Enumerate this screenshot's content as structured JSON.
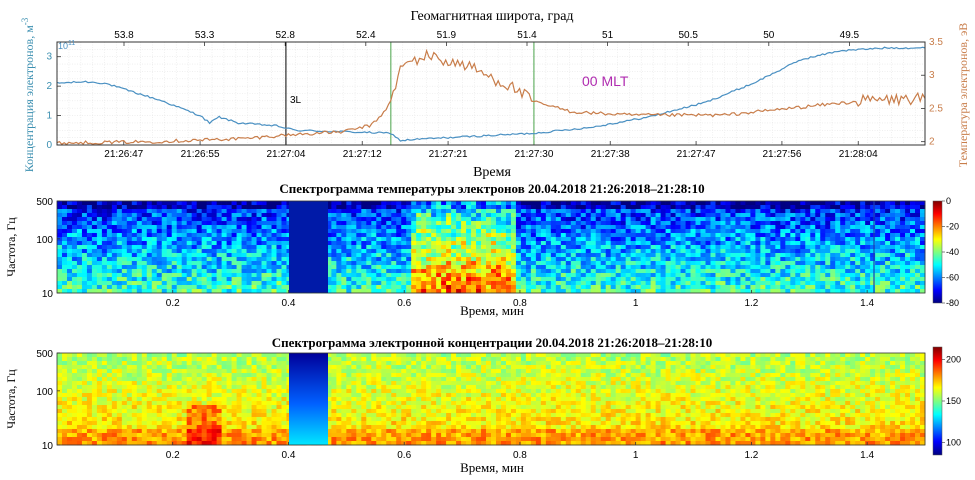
{
  "chart_data": [
    {
      "type": "line",
      "title": "Геомагнитная широта, град",
      "xlabel": "Время",
      "ylabel": "Концентрация электронов, м",
      "ylabel_sup": "-3",
      "y_exponent_label": "10",
      "y_exponent": "11",
      "y2label": "Температура электронов, эВ",
      "annotation": "00 MLT",
      "marker_label": "3L",
      "x_ticks": [
        "21:26:47",
        "21:26:55",
        "21:27:04",
        "21:27:12",
        "21:27:21",
        "21:27:30",
        "21:27:38",
        "21:27:47",
        "21:27:56",
        "21:28:04"
      ],
      "top_ticks": [
        "53.8",
        "53.3",
        "52.8",
        "52.4",
        "51.9",
        "51.4",
        "51",
        "50.5",
        "50",
        "49.5"
      ],
      "y_ticks": [
        "0",
        "1",
        "2",
        "3"
      ],
      "y2_ticks": [
        "2",
        "2.5",
        "3",
        "3.5"
      ],
      "ylim": [
        0,
        3.5
      ],
      "y2lim": [
        1.95,
        3.5
      ],
      "grid": true,
      "series": [
        {
          "axis": "left",
          "color": "#4a90c2",
          "x": [
            "21:26:40",
            "21:26:43",
            "21:26:45",
            "21:26:48",
            "21:26:51",
            "21:26:53",
            "21:26:55",
            "21:26:56",
            "21:26:57",
            "21:26:59",
            "21:27:01",
            "21:27:03",
            "21:27:05",
            "21:27:10",
            "21:27:15",
            "21:27:16",
            "21:27:18",
            "21:27:24",
            "21:27:30",
            "21:27:36",
            "21:27:42",
            "21:27:48",
            "21:27:53",
            "21:27:58",
            "21:28:02",
            "21:28:07",
            "21:28:11"
          ],
          "y": [
            2.1,
            2.15,
            2.1,
            1.8,
            1.5,
            1.25,
            1.0,
            0.75,
            0.95,
            0.75,
            0.7,
            0.65,
            0.5,
            0.45,
            0.4,
            0.15,
            0.2,
            0.3,
            0.4,
            0.6,
            0.95,
            1.45,
            2.1,
            2.9,
            3.2,
            3.3,
            3.3
          ]
        },
        {
          "axis": "right",
          "color": "#c87d4a",
          "x": [
            "21:26:40",
            "21:26:50",
            "21:27:00",
            "21:27:04",
            "21:27:10",
            "21:27:13",
            "21:27:14",
            "21:27:15",
            "21:27:16",
            "21:27:17",
            "21:27:19",
            "21:27:21",
            "21:27:23",
            "21:27:25",
            "21:27:28",
            "21:27:30",
            "21:27:34",
            "21:27:40",
            "21:27:50",
            "21:28:00",
            "21:28:05",
            "21:28:11"
          ],
          "y": [
            1.98,
            2.0,
            2.05,
            2.1,
            2.15,
            2.25,
            2.4,
            2.6,
            3.1,
            3.2,
            3.3,
            3.2,
            3.15,
            3.0,
            2.8,
            2.6,
            2.45,
            2.4,
            2.4,
            2.55,
            2.62,
            2.65
          ]
        }
      ]
    },
    {
      "type": "heatmap",
      "title": "Спектрограмма температуры электронов  20.04.2018  21:26:2018–21:28:10",
      "xlabel": "Время, мин",
      "ylabel": "Частота, Гц",
      "x_ticks": [
        "0.2",
        "0.4",
        "0.6",
        "0.8",
        "1",
        "1.2",
        "1.4"
      ],
      "y_ticks": [
        "10",
        "100",
        "500"
      ],
      "colorbar_ticks": [
        "0",
        "-20",
        "-40",
        "-60",
        "-80"
      ],
      "colorbar_range": [
        -80,
        0
      ],
      "colormap": "jet"
    },
    {
      "type": "heatmap",
      "title": "Спектрограмма электронной концентрации  20.04.2018  21:26:2018–21:28:10",
      "xlabel": "Время, мин",
      "ylabel": "Частота, Гц",
      "x_ticks": [
        "0.2",
        "0.4",
        "0.6",
        "0.8",
        "1",
        "1.2",
        "1.4"
      ],
      "y_ticks": [
        "10",
        "100",
        "500"
      ],
      "colorbar_ticks": [
        "200",
        "150",
        "100"
      ],
      "colorbar_range": [
        85,
        215
      ],
      "colormap": "jet"
    }
  ]
}
